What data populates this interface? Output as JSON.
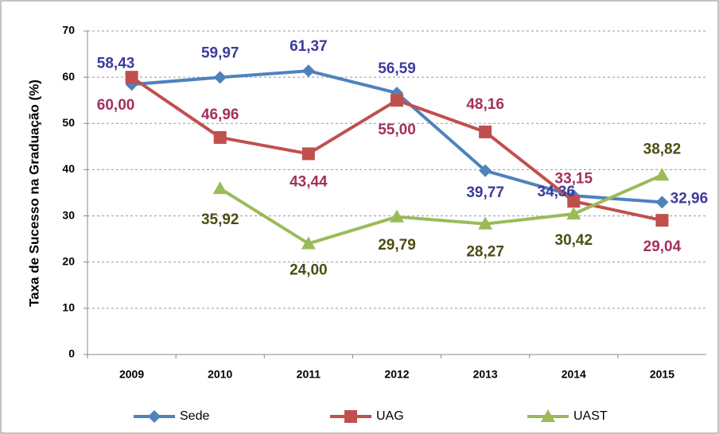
{
  "chart_data": {
    "type": "line",
    "y_label": "Taxa de Sucesso na Graduação (%)",
    "categories": [
      "2009",
      "2010",
      "2011",
      "2012",
      "2013",
      "2014",
      "2015"
    ],
    "series": [
      {
        "name": "Sede",
        "color": "#4f81bd",
        "label_color": "#3b3b9c",
        "marker": "diamond",
        "values": [
          58.43,
          59.97,
          61.37,
          56.59,
          39.77,
          34.36,
          32.96
        ],
        "value_labels": [
          "58,43",
          "59,97",
          "61,37",
          "56,59",
          "39,77",
          "34,36",
          "32,96"
        ]
      },
      {
        "name": "UAG",
        "color": "#c0504d",
        "label_color": "#a3305e",
        "marker": "square",
        "values": [
          60.0,
          46.96,
          43.44,
          55.0,
          48.16,
          33.15,
          29.04
        ],
        "value_labels": [
          "60,00",
          "46,96",
          "43,44",
          "55,00",
          "48,16",
          "33,15",
          "29,04"
        ]
      },
      {
        "name": "UAST",
        "color": "#9bbb59",
        "label_color": "#4d4d12",
        "marker": "triangle",
        "values": [
          null,
          35.92,
          24.0,
          29.79,
          28.27,
          30.42,
          38.82
        ],
        "value_labels": [
          null,
          "35,92",
          "24,00",
          "29,79",
          "28,27",
          "30,42",
          "38,82"
        ]
      }
    ],
    "ylim": [
      0,
      70
    ],
    "yticks": [
      0,
      10,
      20,
      30,
      40,
      50,
      60,
      70
    ],
    "grid": true,
    "legend": "bottom"
  }
}
